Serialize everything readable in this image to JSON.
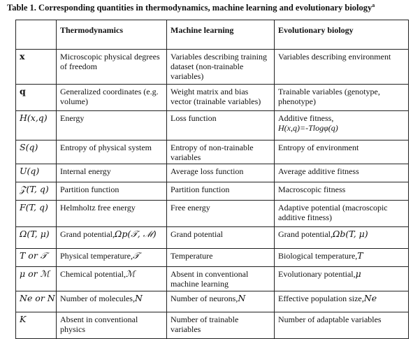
{
  "caption": {
    "text": "Table 1. Corresponding quantities in thermodynamics, machine learning and evolutionary biology",
    "sup": "a"
  },
  "headers": [
    "",
    "Thermodynamics",
    "Machine learning",
    "Evolutionary biology"
  ],
  "rows": [
    {
      "symbol": "x",
      "thermo": "Microscopic physical degrees of freedom",
      "ml": "Variables describing training dataset (non-trainable variables)",
      "evo": "Variables describing environment"
    },
    {
      "symbol": "q",
      "thermo": "Generalized coordinates (e.g. volume)",
      "ml": "Weight matrix and bias vector (trainable variables)",
      "evo": "Trainable variables (genotype, phenotype)"
    },
    {
      "symbol": "H(x,q)",
      "thermo": "Energy",
      "ml": "Loss function",
      "evo": "Additive fitness,",
      "evo_formula": "H(x,q)=-Tlogφ(q)"
    },
    {
      "symbol": "S(q)",
      "thermo": "Entropy of physical system",
      "ml": "Entropy of non-trainable variables",
      "evo": "Entropy of environment"
    },
    {
      "symbol": "U(q)",
      "thermo": "Internal energy",
      "ml": "Average loss function",
      "evo": "Average additive fitness"
    },
    {
      "symbol": "𝒵(T, q)",
      "thermo": "Partition function",
      "ml": "Partition function",
      "evo": "Macroscopic fitness"
    },
    {
      "symbol": "F(T, q)",
      "thermo": "Helmholtz free energy",
      "ml": "Free energy",
      "evo": "Adaptive potential (macroscopic additive fitness)"
    },
    {
      "symbol": "Ω(T, μ)",
      "thermo": "Grand potential,",
      "thermo_formula": "Ωp(𝒯, ℳ)",
      "ml": "Grand potential",
      "evo": "Grand potential,",
      "evo_formula": "Ωb(T, μ)"
    },
    {
      "symbol": "T or 𝒯",
      "thermo": "Physical temperature,",
      "thermo_formula": "𝒯",
      "ml": "Temperature",
      "evo": "Biological temperature,",
      "evo_formula": "T"
    },
    {
      "symbol": "μ or ℳ",
      "thermo": "Chemical potential,",
      "thermo_formula": "ℳ",
      "ml": "Absent in conventional machine learning",
      "evo": "Evolutionary potential,",
      "evo_formula": "μ"
    },
    {
      "symbol": "Ne or N",
      "thermo": "Number of molecules,",
      "thermo_formula": "N",
      "ml": "Number of neurons,",
      "ml_formula": "N",
      "evo": "Effective population size,",
      "evo_formula": "Ne"
    },
    {
      "symbol": "K",
      "thermo": "Absent in conventional physics",
      "ml": "Number of trainable variables",
      "evo": "Number of adaptable variables"
    }
  ]
}
